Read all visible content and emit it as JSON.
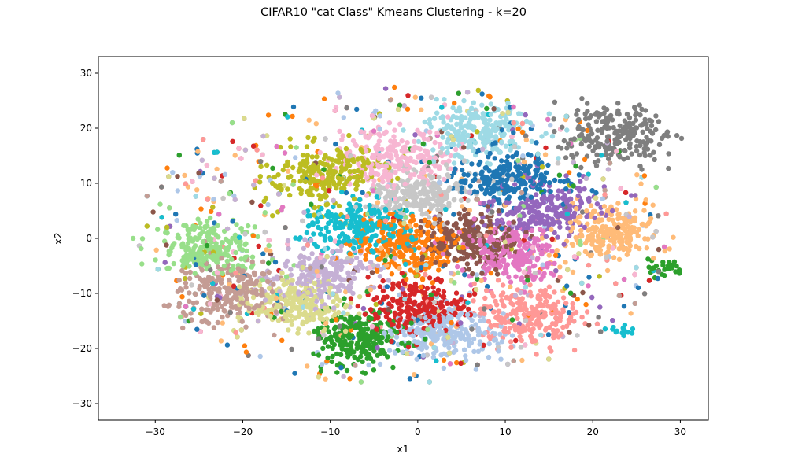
{
  "chart_data": {
    "type": "scatter",
    "title": "CIFAR10 \"cat Class\" Kmeans Clustering - k=20",
    "xlabel": "x1",
    "ylabel": "x2",
    "xlim": [
      -36.5,
      33.2
    ],
    "ylim": [
      -33.0,
      33.0
    ],
    "xticks": [
      -30,
      -20,
      -10,
      0,
      10,
      20,
      30
    ],
    "yticks": [
      -30,
      -20,
      -10,
      0,
      10,
      20,
      30
    ],
    "grid": false,
    "legend": "none",
    "clusters": [
      {
        "center": [
          10.5,
          11.0
        ],
        "spread": [
          3.0,
          2.3
        ],
        "color": "#1f77b4"
      },
      {
        "center": [
          2.5,
          -17.0
        ],
        "spread": [
          3.0,
          2.3
        ],
        "color": "#aec7e8"
      },
      {
        "center": [
          -1.5,
          -1.5
        ],
        "spread": [
          2.8,
          2.6
        ],
        "color": "#ff7f0e"
      },
      {
        "center": [
          21.5,
          1.0
        ],
        "spread": [
          2.8,
          2.6
        ],
        "color": "#ffbb78"
      },
      {
        "center": [
          -7.0,
          -18.5
        ],
        "spread": [
          2.5,
          2.3
        ],
        "color": "#2ca02c"
      },
      {
        "center": [
          -23.5,
          -2.0
        ],
        "spread": [
          3.0,
          2.3
        ],
        "color": "#98df8a"
      },
      {
        "center": [
          -0.5,
          -12.0
        ],
        "spread": [
          2.8,
          2.6
        ],
        "color": "#d62728"
      },
      {
        "center": [
          12.5,
          -14.0
        ],
        "spread": [
          3.0,
          2.6
        ],
        "color": "#ff9896"
      },
      {
        "center": [
          14.5,
          5.0
        ],
        "spread": [
          3.0,
          2.3
        ],
        "color": "#9467bd"
      },
      {
        "center": [
          -11.0,
          -7.0
        ],
        "spread": [
          3.0,
          2.6
        ],
        "color": "#c5b0d5"
      },
      {
        "center": [
          6.0,
          -0.5
        ],
        "spread": [
          2.6,
          2.6
        ],
        "color": "#8c564b"
      },
      {
        "center": [
          -22.0,
          -10.0
        ],
        "spread": [
          3.0,
          2.6
        ],
        "color": "#c49c94"
      },
      {
        "center": [
          11.0,
          -3.0
        ],
        "spread": [
          3.0,
          2.6
        ],
        "color": "#e377c2"
      },
      {
        "center": [
          -3.0,
          14.5
        ],
        "spread": [
          3.2,
          2.6
        ],
        "color": "#f7b6d2"
      },
      {
        "center": [
          22.5,
          19.0
        ],
        "spread": [
          3.4,
          2.6
        ],
        "color": "#7f7f7f"
      },
      {
        "center": [
          0.0,
          8.0
        ],
        "spread": [
          2.6,
          2.0
        ],
        "color": "#c7c7c7"
      },
      {
        "center": [
          -10.5,
          11.5
        ],
        "spread": [
          3.2,
          2.6
        ],
        "color": "#bcbd22"
      },
      {
        "center": [
          -14.0,
          -12.0
        ],
        "spread": [
          3.0,
          2.3
        ],
        "color": "#dbdb8d"
      },
      {
        "center": [
          -7.0,
          2.0
        ],
        "spread": [
          3.0,
          2.3
        ],
        "color": "#17becf"
      },
      {
        "center": [
          7.0,
          19.5
        ],
        "spread": [
          3.2,
          2.3
        ],
        "color": "#9edae5"
      }
    ],
    "points_per_cluster": 300,
    "scatter_fraction": 0.22,
    "outlier_groups": [
      {
        "center": [
          28.0,
          -5.5
        ],
        "spread": [
          1.2,
          0.8
        ],
        "count": 25,
        "color": "#2ca02c"
      },
      {
        "center": [
          23.0,
          -16.8
        ],
        "spread": [
          1.1,
          0.7
        ],
        "count": 14,
        "color": "#17becf"
      }
    ]
  }
}
